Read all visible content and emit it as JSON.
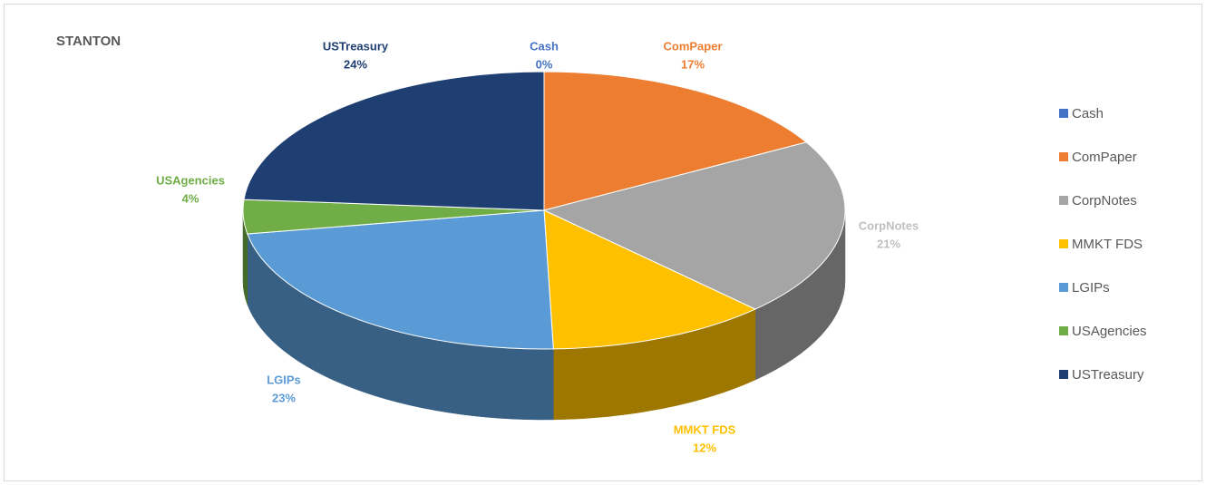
{
  "chart_data": {
    "type": "pie3d",
    "title": "STANTON",
    "categories": [
      "Cash",
      "ComPaper",
      "CorpNotes",
      "MMKT FDS",
      "LGIPs",
      "USAgencies",
      "USTreasury"
    ],
    "values": [
      0,
      17,
      21,
      12,
      23,
      4,
      24
    ],
    "value_labels": [
      "0%",
      "17%",
      "21%",
      "12%",
      "23%",
      "4%",
      "24%"
    ],
    "colors": [
      "#4472c4",
      "#ed7d31",
      "#a5a5a5",
      "#ffc000",
      "#5b9bd5",
      "#70ad47",
      "#1f3f73"
    ],
    "legend": "right"
  }
}
